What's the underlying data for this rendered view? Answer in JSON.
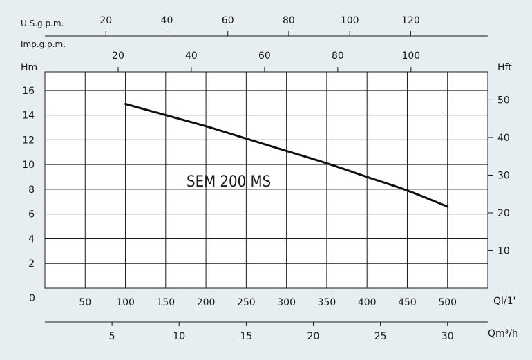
{
  "chart_data": {
    "type": "line",
    "annotation": "SEM 200 MS",
    "series": [
      {
        "name": "SEM 200 MS",
        "x": [
          100,
          150,
          200,
          250,
          300,
          350,
          400,
          450,
          500
        ],
        "y": [
          14.9,
          14.0,
          13.1,
          12.1,
          11.1,
          10.1,
          9.0,
          7.9,
          6.6
        ]
      }
    ],
    "axes": {
      "left": {
        "label": "Hm",
        "ticks": [
          2,
          4,
          6,
          8,
          10,
          12,
          14,
          16
        ],
        "ylim": [
          0,
          17.5
        ]
      },
      "right": {
        "label": "Hft",
        "ticks": [
          10,
          20,
          30,
          40,
          50
        ]
      },
      "bottom": {
        "label": "Ql/1'",
        "ticks": [
          50,
          100,
          150,
          200,
          250,
          300,
          350,
          400,
          450,
          500
        ],
        "xlim": [
          0,
          550
        ]
      },
      "bottom2": {
        "label": "Qm³/h",
        "ticks": [
          5,
          10,
          15,
          20,
          25,
          30
        ]
      },
      "top1": {
        "label": "U.S.g.p.m.",
        "ticks": [
          20,
          40,
          60,
          80,
          100,
          120
        ]
      },
      "top2": {
        "label": "Imp.g.p.m.",
        "ticks": [
          20,
          40,
          60,
          80,
          100
        ]
      }
    },
    "origin_label": "0",
    "grid": true
  }
}
